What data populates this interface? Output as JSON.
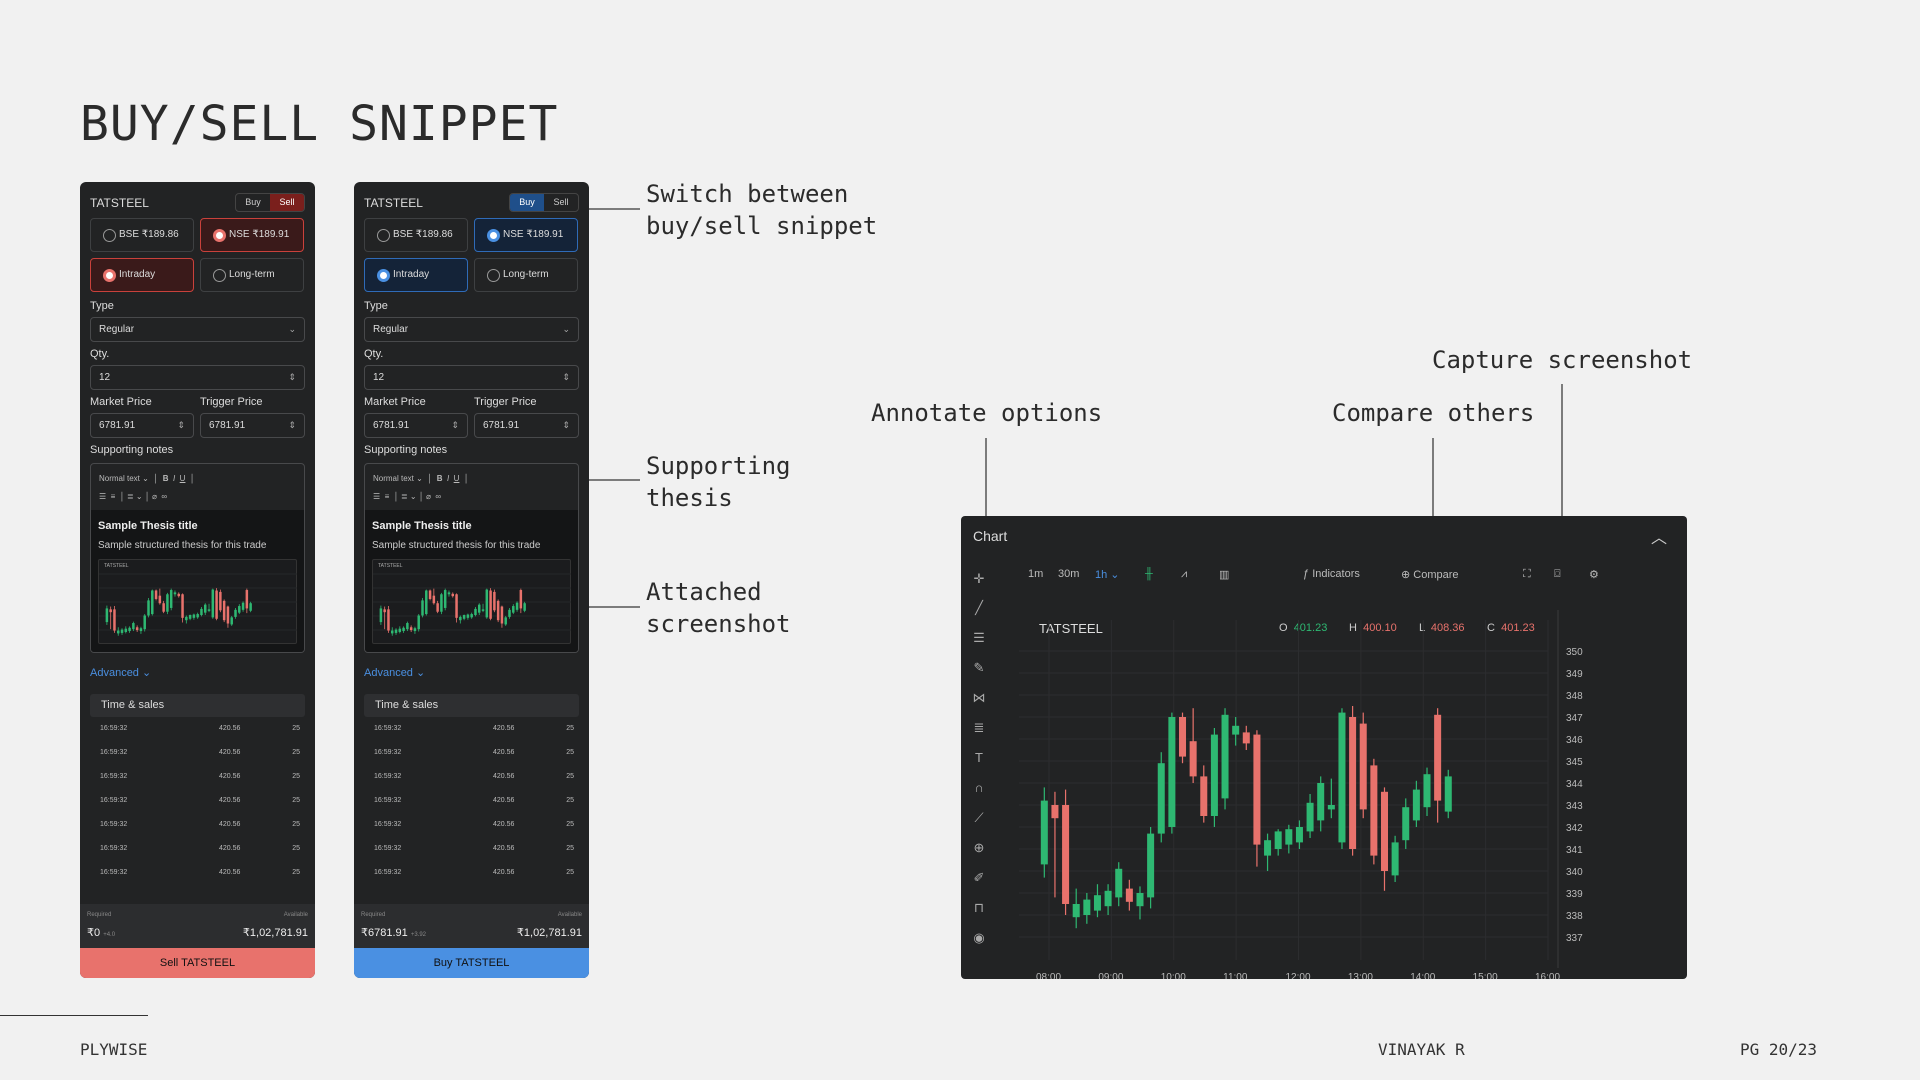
{
  "slide": {
    "title": "BUY/SELL SNIPPET",
    "footer_left": "PLYWISE",
    "footer_center": "VINAYAK R",
    "footer_right": "PG 20/23"
  },
  "annotations": {
    "switch": "Switch between\nbuy/sell snippet",
    "thesis": "Supporting\nthesis",
    "attached": "Attached\nscreenshot",
    "annotate": "Annotate options",
    "compare": "Compare others",
    "capture": "Capture screenshot"
  },
  "sell_panel": {
    "symbol": "TATSTEEL",
    "toggle_buy": "Buy",
    "toggle_sell": "Sell",
    "bse": "BSE ₹189.86",
    "nse": "NSE ₹189.91",
    "intraday": "Intraday",
    "longterm": "Long-term",
    "type_label": "Type",
    "type_value": "Regular",
    "qty_label": "Qty.",
    "qty_value": "12",
    "market_label": "Market Price",
    "market_value": "6781.91",
    "trigger_label": "Trigger Price",
    "trigger_value": "6781.91",
    "notes_label": "Supporting notes",
    "text_style": "Normal text",
    "thesis_title": "Sample Thesis title",
    "thesis_body": "Sample structured thesis for this trade",
    "thumb_symbol": "TATSTEEL",
    "advanced": "Advanced",
    "ts_title": "Time & sales",
    "rows": [
      [
        "16:59:32",
        "420.56",
        "25"
      ],
      [
        "16:59:32",
        "420.56",
        "25"
      ],
      [
        "16:59:32",
        "420.56",
        "25"
      ],
      [
        "16:59:32",
        "420.56",
        "25"
      ],
      [
        "16:59:32",
        "420.56",
        "25"
      ],
      [
        "16:59:32",
        "420.56",
        "25"
      ],
      [
        "16:59:32",
        "420.56",
        "25"
      ]
    ],
    "required_label": "Required",
    "available_label": "Available",
    "required_value": "₹0",
    "required_delta": "+4.0",
    "available_value": "₹1,02,781.91",
    "action": "Sell TATSTEEL",
    "accent": "#e8726c"
  },
  "buy_panel": {
    "symbol": "TATSTEEL",
    "toggle_buy": "Buy",
    "toggle_sell": "Sell",
    "bse": "BSE ₹189.86",
    "nse": "NSE ₹189.91",
    "intraday": "Intraday",
    "longterm": "Long-term",
    "type_label": "Type",
    "type_value": "Regular",
    "qty_label": "Qty.",
    "qty_value": "12",
    "market_label": "Market Price",
    "market_value": "6781.91",
    "trigger_label": "Trigger Price",
    "trigger_value": "6781.91",
    "notes_label": "Supporting notes",
    "text_style": "Normal text",
    "thesis_title": "Sample Thesis title",
    "thesis_body": "Sample structured thesis for this trade",
    "thumb_symbol": "TATSTEEL",
    "advanced": "Advanced",
    "ts_title": "Time & sales",
    "rows": [
      [
        "16:59:32",
        "420.56",
        "25"
      ],
      [
        "16:59:32",
        "420.56",
        "25"
      ],
      [
        "16:59:32",
        "420.56",
        "25"
      ],
      [
        "16:59:32",
        "420.56",
        "25"
      ],
      [
        "16:59:32",
        "420.56",
        "25"
      ],
      [
        "16:59:32",
        "420.56",
        "25"
      ],
      [
        "16:59:32",
        "420.56",
        "25"
      ]
    ],
    "required_label": "Required",
    "available_label": "Available",
    "required_value": "₹6781.91",
    "required_delta": "+3.92",
    "available_value": "₹1,02,781.91",
    "action": "Buy TATSTEEL",
    "accent": "#4a90e2"
  },
  "chart_window": {
    "title": "Chart",
    "intervals": [
      "1m",
      "30m",
      "1h"
    ],
    "indicators": "Indicators",
    "compare": "Compare",
    "left_tools": [
      "crosshair-icon",
      "trend-line-icon",
      "horizontal-lines-icon",
      "brush-icon",
      "pattern-icon",
      "fib-icon",
      "text-icon",
      "magnet-icon",
      "ruler-icon",
      "zoom-icon",
      "pencil-lock-icon",
      "lock-icon",
      "eye-icon"
    ]
  },
  "chart_data": {
    "type": "candlestick",
    "symbol": "TATSTEEL",
    "ohlc_labels": {
      "o_label": "O",
      "o": "401.23",
      "h_label": "H",
      "h": "400.10",
      "l_label": "L",
      "l": "408.36",
      "c_label": "C",
      "c": "401.23"
    },
    "x_ticks": [
      "08:00",
      "09:00",
      "10:00",
      "11:00",
      "12:00",
      "13:00",
      "14:00",
      "15:00",
      "16:00"
    ],
    "y_ticks": [
      350,
      349,
      348,
      347,
      346,
      345,
      344,
      343,
      342,
      341,
      340,
      339,
      338,
      337
    ],
    "ylim": [
      336.5,
      350.5
    ],
    "grid": true,
    "up_color": "#2eb872",
    "down_color": "#e8726c",
    "candles": [
      {
        "o": 340.3,
        "h": 343.8,
        "l": 339.7,
        "c": 343.2
      },
      {
        "o": 343.0,
        "h": 343.6,
        "l": 338.8,
        "c": 342.4
      },
      {
        "o": 343.0,
        "h": 343.7,
        "l": 338.0,
        "c": 338.5
      },
      {
        "o": 337.9,
        "h": 339.2,
        "l": 337.4,
        "c": 338.5
      },
      {
        "o": 338.0,
        "h": 339.0,
        "l": 337.6,
        "c": 338.7
      },
      {
        "o": 338.2,
        "h": 339.4,
        "l": 337.9,
        "c": 338.9
      },
      {
        "o": 338.4,
        "h": 339.4,
        "l": 338.0,
        "c": 339.1
      },
      {
        "o": 338.8,
        "h": 340.4,
        "l": 338.4,
        "c": 340.1
      },
      {
        "o": 339.2,
        "h": 339.6,
        "l": 338.2,
        "c": 338.6
      },
      {
        "o": 338.4,
        "h": 339.3,
        "l": 337.8,
        "c": 339.0
      },
      {
        "o": 338.8,
        "h": 342.0,
        "l": 338.3,
        "c": 341.7
      },
      {
        "o": 341.7,
        "h": 345.4,
        "l": 341.3,
        "c": 344.9
      },
      {
        "o": 342.0,
        "h": 347.2,
        "l": 341.7,
        "c": 347.0
      },
      {
        "o": 347.0,
        "h": 347.2,
        "l": 344.9,
        "c": 345.2
      },
      {
        "o": 345.9,
        "h": 347.4,
        "l": 344.0,
        "c": 344.3
      },
      {
        "o": 344.3,
        "h": 344.8,
        "l": 342.2,
        "c": 342.5
      },
      {
        "o": 342.5,
        "h": 346.5,
        "l": 342.0,
        "c": 346.2
      },
      {
        "o": 343.3,
        "h": 347.4,
        "l": 342.8,
        "c": 347.1
      },
      {
        "o": 346.2,
        "h": 347.0,
        "l": 345.7,
        "c": 346.6
      },
      {
        "o": 346.3,
        "h": 346.6,
        "l": 345.5,
        "c": 345.8
      },
      {
        "o": 346.2,
        "h": 346.4,
        "l": 340.2,
        "c": 341.2
      },
      {
        "o": 340.7,
        "h": 341.7,
        "l": 340.0,
        "c": 341.4
      },
      {
        "o": 341.0,
        "h": 341.9,
        "l": 340.7,
        "c": 341.8
      },
      {
        "o": 341.2,
        "h": 342.1,
        "l": 340.8,
        "c": 341.9
      },
      {
        "o": 341.3,
        "h": 342.3,
        "l": 341.0,
        "c": 342.0
      },
      {
        "o": 341.8,
        "h": 343.5,
        "l": 341.5,
        "c": 343.1
      },
      {
        "o": 342.3,
        "h": 344.3,
        "l": 341.8,
        "c": 344.0
      },
      {
        "o": 342.8,
        "h": 344.2,
        "l": 342.4,
        "c": 343.0
      },
      {
        "o": 341.3,
        "h": 347.4,
        "l": 341.0,
        "c": 347.2
      },
      {
        "o": 347.0,
        "h": 347.5,
        "l": 340.7,
        "c": 341.0
      },
      {
        "o": 346.7,
        "h": 347.2,
        "l": 342.4,
        "c": 342.8
      },
      {
        "o": 344.8,
        "h": 345.1,
        "l": 340.3,
        "c": 340.7
      },
      {
        "o": 343.6,
        "h": 343.8,
        "l": 339.1,
        "c": 340.0
      },
      {
        "o": 339.8,
        "h": 341.6,
        "l": 339.5,
        "c": 341.3
      },
      {
        "o": 341.4,
        "h": 343.3,
        "l": 341.0,
        "c": 342.9
      },
      {
        "o": 342.3,
        "h": 344.1,
        "l": 342.0,
        "c": 343.7
      },
      {
        "o": 342.9,
        "h": 344.7,
        "l": 342.5,
        "c": 344.4
      },
      {
        "o": 347.1,
        "h": 347.4,
        "l": 342.2,
        "c": 343.2
      },
      {
        "o": 342.7,
        "h": 344.6,
        "l": 342.4,
        "c": 344.3
      }
    ]
  }
}
